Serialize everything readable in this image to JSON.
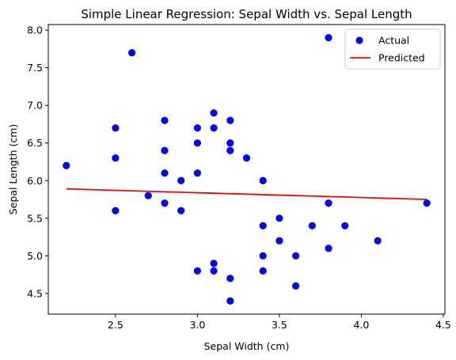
{
  "chart_data": {
    "type": "scatter",
    "title": "Simple Linear Regression: Sepal Width vs. Sepal Length",
    "xlabel": "Sepal Width (cm)",
    "ylabel": "Sepal Length (cm)",
    "xlim": [
      2.09,
      4.51
    ],
    "ylim": [
      4.225,
      8.075
    ],
    "xticks": [
      2.5,
      3.0,
      3.5,
      4.0,
      4.5
    ],
    "yticks": [
      4.5,
      5.0,
      5.5,
      6.0,
      6.5,
      7.0,
      7.5,
      8.0
    ],
    "xtick_labels": [
      "2.5",
      "3.0",
      "3.5",
      "4.0",
      "4.5"
    ],
    "ytick_labels": [
      "4.5",
      "5.0",
      "5.5",
      "6.0",
      "6.5",
      "7.0",
      "7.5",
      "8.0"
    ],
    "grid": false,
    "legend_position": "upper right",
    "series": [
      {
        "name": "Actual",
        "kind": "scatter",
        "color": "#0000ff",
        "points": [
          [
            2.2,
            6.2
          ],
          [
            2.5,
            6.7
          ],
          [
            2.5,
            6.3
          ],
          [
            2.5,
            5.6
          ],
          [
            2.6,
            7.7
          ],
          [
            2.7,
            5.8
          ],
          [
            2.8,
            6.8
          ],
          [
            2.8,
            6.4
          ],
          [
            2.8,
            6.1
          ],
          [
            2.8,
            5.7
          ],
          [
            2.9,
            6.0
          ],
          [
            2.9,
            5.6
          ],
          [
            3.0,
            6.7
          ],
          [
            3.0,
            6.5
          ],
          [
            3.0,
            6.1
          ],
          [
            3.0,
            4.8
          ],
          [
            3.1,
            6.9
          ],
          [
            3.1,
            6.7
          ],
          [
            3.1,
            4.9
          ],
          [
            3.1,
            4.8
          ],
          [
            3.2,
            6.8
          ],
          [
            3.2,
            6.5
          ],
          [
            3.2,
            6.4
          ],
          [
            3.2,
            4.7
          ],
          [
            3.2,
            4.4
          ],
          [
            3.3,
            6.3
          ],
          [
            3.4,
            6.0
          ],
          [
            3.4,
            5.4
          ],
          [
            3.4,
            5.0
          ],
          [
            3.4,
            4.8
          ],
          [
            3.5,
            5.5
          ],
          [
            3.5,
            5.2
          ],
          [
            3.6,
            5.0
          ],
          [
            3.6,
            4.6
          ],
          [
            3.7,
            5.4
          ],
          [
            3.8,
            7.9
          ],
          [
            3.8,
            5.7
          ],
          [
            3.8,
            5.1
          ],
          [
            3.9,
            5.4
          ],
          [
            4.1,
            5.2
          ],
          [
            4.4,
            5.7
          ]
        ]
      },
      {
        "name": "Predicted",
        "kind": "line",
        "color": "#ff0000",
        "points": [
          [
            2.2,
            5.89
          ],
          [
            4.4,
            5.75
          ]
        ]
      }
    ]
  }
}
